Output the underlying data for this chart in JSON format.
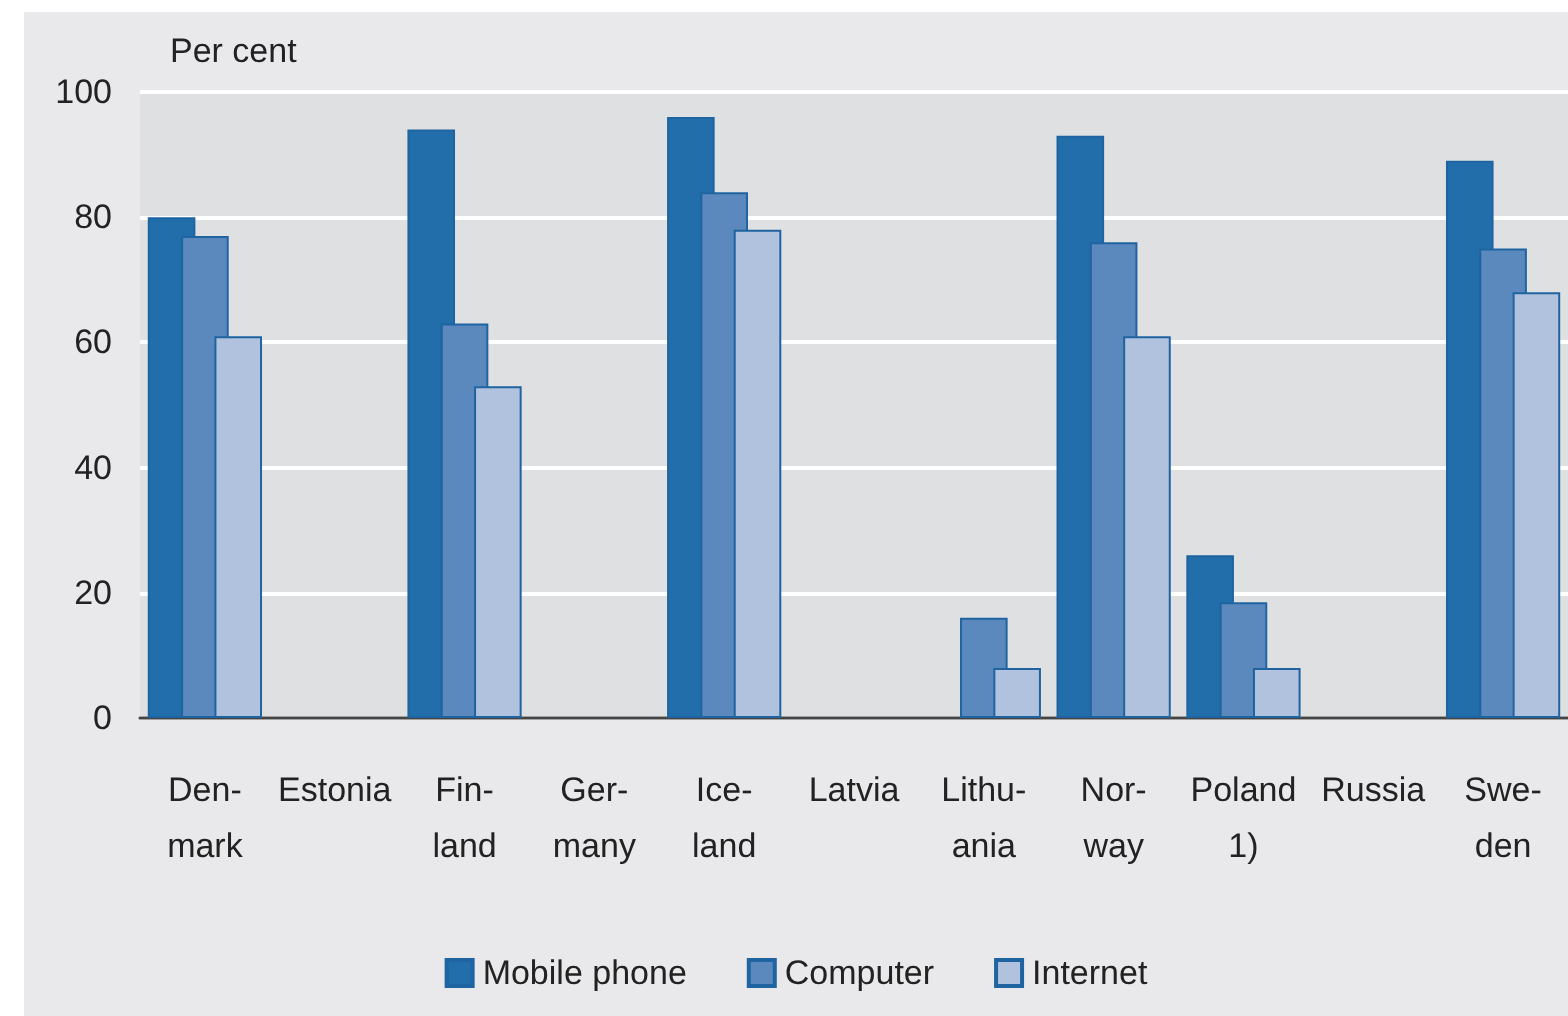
{
  "chart_data": {
    "type": "bar",
    "ylabel": "Per cent",
    "categories": [
      "Den-\nmark",
      "Estonia",
      "Fin-\nland",
      "Ger-\nmany",
      "Ice-\nland",
      "Latvia",
      "Lithu-\nania",
      "Nor-\nway",
      "Poland\n1)",
      "Russia",
      "Swe-\nden"
    ],
    "series": [
      {
        "name": "Mobile phone",
        "color": "#216eab",
        "values": [
          80,
          null,
          94,
          null,
          96,
          null,
          null,
          93,
          26,
          null,
          89
        ]
      },
      {
        "name": "Computer",
        "color": "#5b89bd",
        "values": [
          77,
          null,
          63,
          null,
          84,
          null,
          16,
          76,
          18.5,
          null,
          75
        ]
      },
      {
        "name": "Internet",
        "color": "#b0c2de",
        "values": [
          61,
          null,
          53,
          null,
          78,
          null,
          8,
          61,
          8,
          null,
          68
        ]
      }
    ],
    "ylim": [
      0,
      100
    ],
    "yticks": [
      0,
      20,
      40,
      60,
      80,
      100
    ],
    "grid": "y",
    "legend": "bottom"
  }
}
